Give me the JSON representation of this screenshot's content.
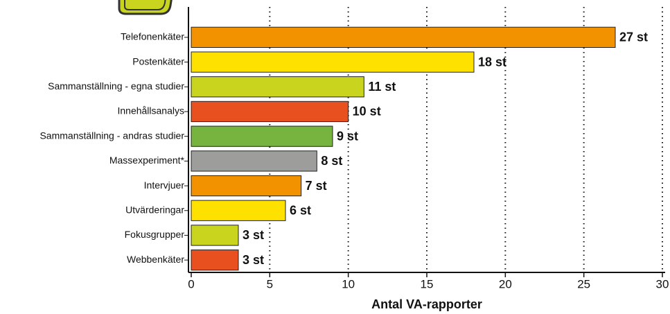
{
  "chart_data": {
    "type": "bar",
    "orientation": "horizontal",
    "categories": [
      "Telefonenkäter",
      "Postenkäter",
      "Sammanställning - egna studier",
      "Innehållsanalys",
      "Sammanställning - andras studier",
      "Massexperiment*",
      "Intervjuer",
      "Utvärderingar",
      "Fokusgrupper",
      "Webbenkäter"
    ],
    "values": [
      27,
      18,
      11,
      10,
      9,
      8,
      7,
      6,
      3,
      3
    ],
    "value_labels": [
      "27 st",
      "18 st",
      "11 st",
      "10 st",
      "9 st",
      "8 st",
      "7 st",
      "6 st",
      "3 st",
      "3 st"
    ],
    "colors": [
      "#f39200",
      "#ffe100",
      "#c8d41e",
      "#e9501f",
      "#77b43f",
      "#9d9d9c",
      "#f39200",
      "#ffe100",
      "#c8d41e",
      "#e9501f"
    ],
    "xlabel": "Antal VA-rapporter",
    "xlim": [
      0,
      30
    ],
    "xticks": [
      0,
      5,
      10,
      15,
      20,
      25,
      30
    ],
    "grid": true
  }
}
